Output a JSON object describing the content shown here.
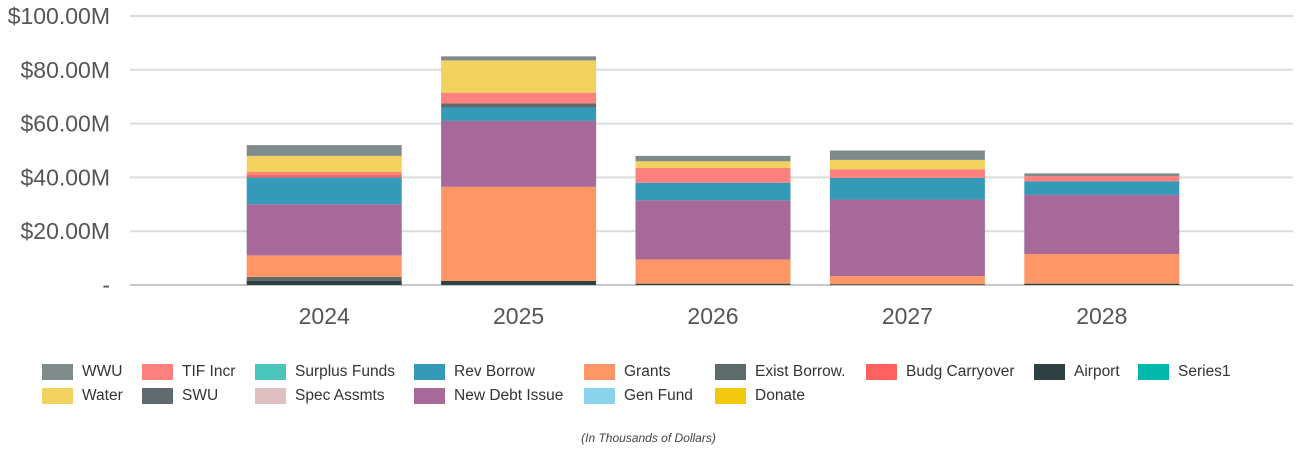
{
  "chart_data": {
    "type": "bar",
    "stacked": true,
    "categories": [
      "2024",
      "2025",
      "2026",
      "2027",
      "2028"
    ],
    "ylim": [
      0,
      100
    ],
    "y_ticks": [
      {
        "value": 0,
        "label": "-"
      },
      {
        "value": 20,
        "label": "$20.00M"
      },
      {
        "value": 40,
        "label": "$40.00M"
      },
      {
        "value": 60,
        "label": "$60.00M"
      },
      {
        "value": 80,
        "label": "$80.00M"
      },
      {
        "value": 100,
        "label": "$100.00M"
      }
    ],
    "grid": true,
    "legend_position": "bottom",
    "caption": "(In Thousands of Dollars)",
    "series": [
      {
        "name": "Airport",
        "color": "#2f4040",
        "values": [
          1.5,
          1.5,
          0.5,
          0.3,
          0.5
        ]
      },
      {
        "name": "Exist Borrow.",
        "color": "#5d6b6b",
        "values": [
          1.5,
          0,
          0,
          0,
          0
        ]
      },
      {
        "name": "Grants",
        "color": "#fe9666",
        "values": [
          8,
          35,
          9,
          3,
          11
        ]
      },
      {
        "name": "New Debt Issue",
        "color": "#a66999",
        "values": [
          19,
          24.5,
          22,
          28.5,
          22
        ]
      },
      {
        "name": "Rev Borrow",
        "color": "#3599b8",
        "values": [
          10,
          5,
          6.5,
          8,
          5
        ]
      },
      {
        "name": "SWU",
        "color": "#5f6b6d",
        "values": [
          0,
          1.5,
          0,
          0,
          0
        ]
      },
      {
        "name": "Budg Carryover",
        "color": "#fd625e",
        "values": [
          1,
          0,
          0,
          0,
          0
        ]
      },
      {
        "name": "TIF Incr",
        "color": "#fd817e",
        "values": [
          1,
          4,
          5.5,
          3.2,
          2
        ]
      },
      {
        "name": "Water",
        "color": "#f2d25e",
        "values": [
          6,
          12,
          2.5,
          3.5,
          0
        ]
      },
      {
        "name": "WWU",
        "color": "#7f8b8b",
        "values": [
          4,
          1.5,
          2,
          3.5,
          1
        ]
      }
    ]
  },
  "legend": {
    "rows": [
      [
        {
          "label": "WWU",
          "color": "#7f8b8b"
        },
        {
          "label": "TIF Incr",
          "color": "#fd817e"
        },
        {
          "label": "Surplus Funds",
          "color": "#4ac5bb"
        },
        {
          "label": "Rev Borrow",
          "color": "#3599b8"
        },
        {
          "label": "Grants",
          "color": "#fe9666"
        },
        {
          "label": "Exist Borrow.",
          "color": "#5d6b6b"
        },
        {
          "label": "Budg Carryover",
          "color": "#fd625e"
        },
        {
          "label": "Airport",
          "color": "#2f4040"
        },
        {
          "label": "Series1",
          "color": "#01b8aa"
        }
      ],
      [
        {
          "label": "Water",
          "color": "#f2d25e"
        },
        {
          "label": "SWU",
          "color": "#5f6b6d"
        },
        {
          "label": "Spec Assmts",
          "color": "#dfbfbf"
        },
        {
          "label": "New Debt Issue",
          "color": "#a66999"
        },
        {
          "label": "Gen Fund",
          "color": "#8ad4eb"
        },
        {
          "label": "Donate",
          "color": "#f2c80f"
        }
      ]
    ]
  }
}
